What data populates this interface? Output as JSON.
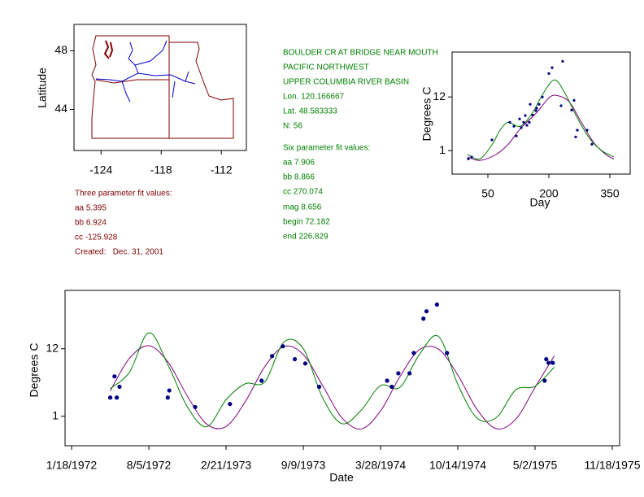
{
  "fit3": {
    "title": "Three parameter fit values:",
    "lines": [
      "aa 5.395",
      "bb 6.924",
      "cc -125.928",
      "Created:   Dec. 31, 2001"
    ]
  },
  "station": {
    "lines": [
      "BOULDER CR AT BRIDGE NEAR MOUTH",
      "PACIFIC NORTHWEST",
      "UPPER COLUMBIA RIVER BASIN",
      "Lon. 120.166667",
      "Lat. 48.583333",
      "N: 56"
    ]
  },
  "fit6": {
    "title": "Six parameter fit values:",
    "lines": [
      "aa 7.906",
      "bb 8.866",
      "cc 270.074",
      "mag 8.656",
      "begin 72.182",
      "end 226.829"
    ]
  },
  "chart_data": [
    {
      "type": "map",
      "ylabel": "Latitude",
      "xlim": [
        -126.7,
        -109.5
      ],
      "xticks": [
        -124,
        -118,
        -112
      ],
      "ylim": [
        41.2,
        49.8
      ],
      "yticks": [
        44,
        48
      ]
    },
    {
      "type": "scatter",
      "xlabel": "Day",
      "ylabel": "Degrees C",
      "xlim": [
        -38,
        400
      ],
      "xticks": [
        50,
        200,
        350
      ],
      "ylim": [
        -3.8,
        21.2
      ],
      "yticks": [
        1,
        12
      ],
      "color": "#000080",
      "x": [
        2,
        10,
        60,
        104,
        114,
        120,
        128,
        132,
        138,
        142,
        146,
        152,
        154,
        160,
        168,
        170,
        176,
        184,
        200,
        208,
        230,
        234,
        256,
        262,
        266,
        270,
        294,
        306
      ],
      "values": [
        -0.7,
        -0.3,
        3.2,
        6.8,
        6.0,
        4.0,
        7.5,
        5.7,
        6.8,
        8.2,
        6.2,
        6.8,
        10.5,
        8.3,
        9.2,
        9.7,
        10.5,
        12.0,
        16.8,
        18.0,
        10.2,
        19.3,
        9.3,
        11.3,
        3.8,
        5.2,
        5.2,
        2.3
      ],
      "series": [
        {
          "color": "#800080",
          "x": [
            0,
            30,
            70,
            100,
            130,
            170,
            200,
            220,
            250,
            280,
            310,
            340,
            360
          ],
          "values": [
            -0.3,
            -1,
            0.2,
            2.3,
            5.5,
            8.8,
            11.8,
            12.3,
            11,
            6.8,
            2.7,
            0.2,
            -0.7
          ]
        },
        {
          "color": "#008000",
          "x": [
            0,
            30,
            60,
            80,
            100,
            130,
            160,
            186,
            214,
            240,
            270,
            300,
            330,
            360
          ],
          "values": [
            0.2,
            -0.7,
            2.2,
            5.2,
            6.8,
            6.0,
            8.8,
            12.7,
            15.5,
            12.7,
            7.7,
            3.5,
            1,
            -0.3
          ]
        }
      ]
    },
    {
      "type": "scatter",
      "xlabel": "Date",
      "ylabel": "Degrees C",
      "xlim": [
        "1972-01-01",
        "1975-12-07"
      ],
      "xticks": [
        {
          "value": "1972-01-18",
          "label": "1/18/1972"
        },
        {
          "value": "1972-08-05",
          "label": "8/5/1972"
        },
        {
          "value": "1973-02-21",
          "label": "2/21/1973"
        },
        {
          "value": "1973-09-09",
          "label": "9/9/1973"
        },
        {
          "value": "1974-03-28",
          "label": "3/28/1974"
        },
        {
          "value": "1974-10-14",
          "label": "10/14/1974"
        },
        {
          "value": "1975-05-02",
          "label": "5/2/1975"
        },
        {
          "value": "1975-11-18",
          "label": "11/18/1975"
        }
      ],
      "ylim": [
        -3.8,
        21.5
      ],
      "yticks": [
        1,
        12
      ],
      "color": "#000080",
      "x": [
        "1972-04-27",
        "1972-05-08",
        "1972-05-14",
        "1972-05-21",
        "1972-09-23",
        "1972-09-27",
        "1972-12-03",
        "1973-03-03",
        "1973-05-24",
        "1973-06-20",
        "1973-07-18",
        "1973-08-18",
        "1973-09-14",
        "1973-10-20",
        "1974-04-14",
        "1974-04-26",
        "1974-05-13",
        "1974-06-11",
        "1974-06-22",
        "1974-07-17",
        "1974-07-25",
        "1974-08-21",
        "1974-09-16",
        "1975-05-27",
        "1975-05-31",
        "1975-06-06",
        "1975-06-17"
      ],
      "values": [
        4.05,
        7.5,
        4.05,
        5.8,
        4.05,
        5.2,
        2.5,
        3.0,
        6.8,
        10.8,
        12.4,
        10.3,
        9.6,
        5.8,
        6.8,
        5.8,
        8.0,
        8.0,
        11.3,
        16.9,
        18.1,
        19.2,
        11.3,
        6.8,
        10.3,
        9.7,
        9.7
      ],
      "series": [
        {
          "color": "#800080",
          "x": [
            "1972-04-27",
            "1972-06-16",
            "1972-08-05",
            "1972-09-24",
            "1972-11-13",
            "1973-01-02",
            "1973-02-21",
            "1973-04-12",
            "1973-06-01",
            "1973-07-21",
            "1973-09-09",
            "1973-10-29",
            "1973-12-18",
            "1974-02-06",
            "1974-03-28",
            "1974-05-17",
            "1974-07-06",
            "1974-08-25",
            "1974-10-14",
            "1974-12-03",
            "1975-01-22",
            "1975-03-13",
            "1975-05-02",
            "1975-06-21"
          ],
          "values": [
            5.12,
            10.46,
            12.49,
            9.79,
            4.25,
            -0.28,
            -0.66,
            3.41,
            9.06,
            12.37,
            11.04,
            6.0,
            0.74,
            -1.06,
            1.87,
            7.44,
            11.81,
            11.94,
            7.72,
            2.1,
            -1.02,
            0.51,
            5.7,
            10.86
          ]
        },
        {
          "color": "#008000",
          "x": [
            "1972-04-27",
            "1972-06-16",
            "1972-08-05",
            "1972-09-24",
            "1972-11-13",
            "1973-01-02",
            "1973-02-21",
            "1973-04-12",
            "1973-06-01",
            "1973-07-21",
            "1973-09-09",
            "1973-10-29",
            "1973-12-18",
            "1974-02-06",
            "1974-03-28",
            "1974-05-17",
            "1974-07-06",
            "1974-08-25",
            "1974-10-14",
            "1974-12-03",
            "1975-01-22",
            "1975-03-13",
            "1975-05-02",
            "1975-06-21"
          ],
          "values": [
            5.5,
            8.2,
            14.6,
            9.3,
            2.5,
            -0.7,
            3.7,
            6.3,
            6.6,
            13.1,
            12,
            4,
            -0.2,
            2,
            6.0,
            5.7,
            11,
            14.0,
            6.2,
            0.7,
            0.8,
            5.3,
            5.9,
            9.0
          ]
        }
      ]
    }
  ]
}
